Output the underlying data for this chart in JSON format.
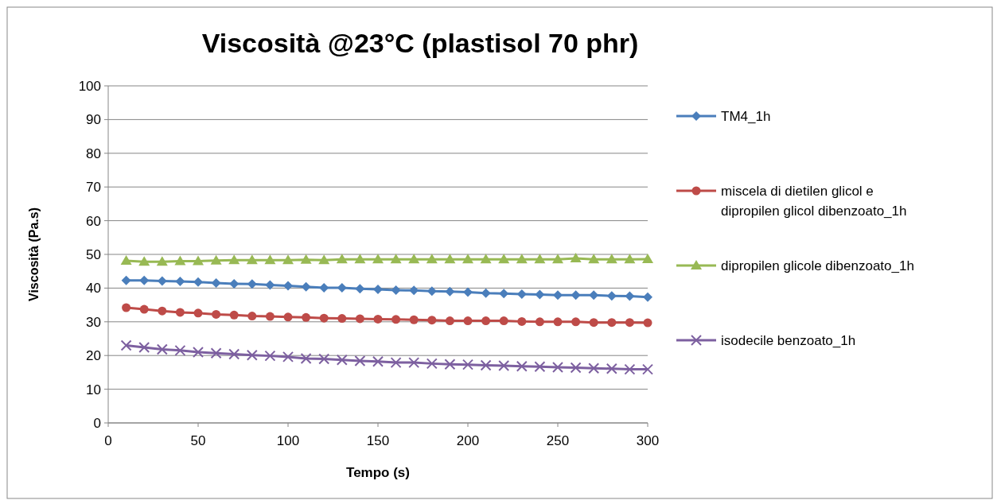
{
  "chart_data": {
    "type": "line",
    "title": "Viscosità @23°C (plastisol 70 phr)",
    "xlabel": "Tempo (s)",
    "ylabel": "Viscosità (Pa.s)",
    "x": [
      10,
      20,
      30,
      40,
      50,
      60,
      70,
      80,
      90,
      100,
      110,
      120,
      130,
      140,
      150,
      160,
      170,
      180,
      190,
      200,
      210,
      220,
      230,
      240,
      250,
      260,
      270,
      280,
      290,
      300
    ],
    "xlim": [
      0,
      300
    ],
    "xticks": [
      0,
      50,
      100,
      150,
      200,
      250,
      300
    ],
    "ylim": [
      0,
      100
    ],
    "yticks": [
      0,
      10,
      20,
      30,
      40,
      50,
      60,
      70,
      80,
      90,
      100
    ],
    "grid": "y",
    "legend": "right",
    "series": [
      {
        "name": "TM4_1h",
        "color": "#4a7ebb",
        "marker": "diamond",
        "values": [
          42.3,
          42.3,
          42.1,
          42.0,
          41.8,
          41.5,
          41.3,
          41.2,
          40.9,
          40.7,
          40.4,
          40.1,
          40.1,
          39.8,
          39.6,
          39.4,
          39.3,
          39.1,
          39.0,
          38.8,
          38.5,
          38.4,
          38.2,
          38.1,
          37.9,
          37.9,
          37.9,
          37.7,
          37.6,
          37.3
        ]
      },
      {
        "name": "miscela di dietilen glicol e dipropilen glicol dibenzoato_1h",
        "color": "#be4b48",
        "marker": "circle",
        "values": [
          34.2,
          33.7,
          33.2,
          32.8,
          32.6,
          32.2,
          32.0,
          31.7,
          31.6,
          31.4,
          31.3,
          31.1,
          31.0,
          30.9,
          30.8,
          30.7,
          30.6,
          30.5,
          30.3,
          30.3,
          30.3,
          30.3,
          30.1,
          30.0,
          30.0,
          30.0,
          29.8,
          29.8,
          29.8,
          29.7
        ]
      },
      {
        "name": "dipropilen glicole dibenzoato_1h",
        "color": "#98b954",
        "marker": "triangle",
        "values": [
          48.1,
          47.8,
          47.8,
          48.0,
          48.0,
          48.2,
          48.3,
          48.3,
          48.3,
          48.3,
          48.4,
          48.3,
          48.5,
          48.5,
          48.5,
          48.5,
          48.5,
          48.5,
          48.5,
          48.5,
          48.5,
          48.5,
          48.5,
          48.5,
          48.5,
          48.8,
          48.5,
          48.5,
          48.5,
          48.6
        ]
      },
      {
        "name": "isodecile benzoato_1h",
        "color": "#7d60a0",
        "marker": "cross",
        "values": [
          23.0,
          22.4,
          21.8,
          21.5,
          21.0,
          20.7,
          20.4,
          20.1,
          19.9,
          19.6,
          19.1,
          19.0,
          18.7,
          18.4,
          18.2,
          17.9,
          17.9,
          17.6,
          17.4,
          17.3,
          17.1,
          17.0,
          16.8,
          16.7,
          16.5,
          16.4,
          16.2,
          16.1,
          15.9,
          15.9
        ]
      }
    ]
  }
}
